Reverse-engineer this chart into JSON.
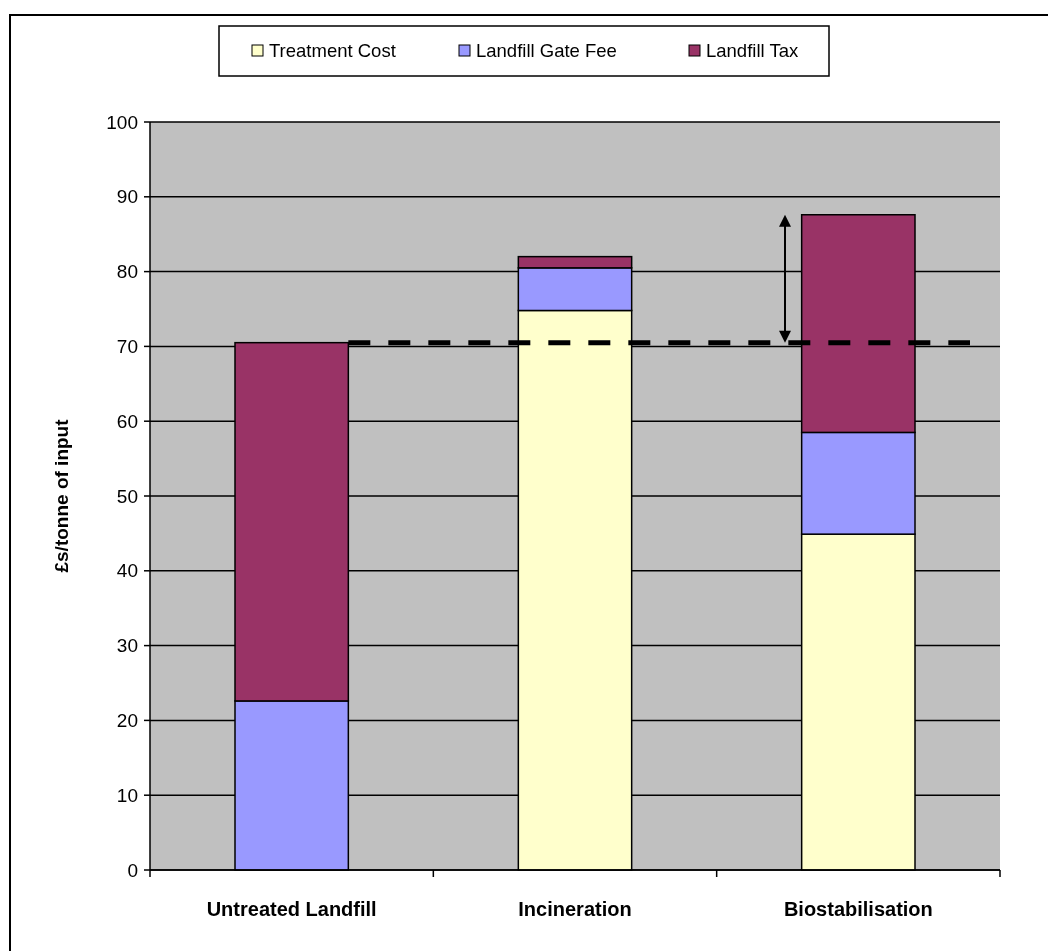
{
  "chart_data": {
    "type": "bar",
    "stacked": true,
    "ylabel": "£s/tonne of input",
    "categories": [
      "Untreated Landfill",
      "Incineration",
      "Biostabilisation"
    ],
    "series": [
      {
        "name": "Treatment Cost",
        "color": "#ffffcc",
        "values": [
          0,
          74.8,
          44.9
        ]
      },
      {
        "name": "Landfill Gate Fee",
        "color": "#9999ff",
        "values": [
          22.6,
          5.7,
          13.6
        ]
      },
      {
        "name": "Landfill Tax",
        "color": "#993366",
        "values": [
          47.9,
          1.5,
          29.1
        ]
      }
    ],
    "ylim": [
      0,
      100
    ],
    "yticks": [
      0,
      10,
      20,
      30,
      40,
      50,
      60,
      70,
      80,
      90,
      100
    ],
    "grid": "y",
    "legend": "top",
    "ref_lines": [
      {
        "axis": "y",
        "value": 70.5,
        "color": "#000000",
        "line_style": "dashed"
      }
    ]
  }
}
